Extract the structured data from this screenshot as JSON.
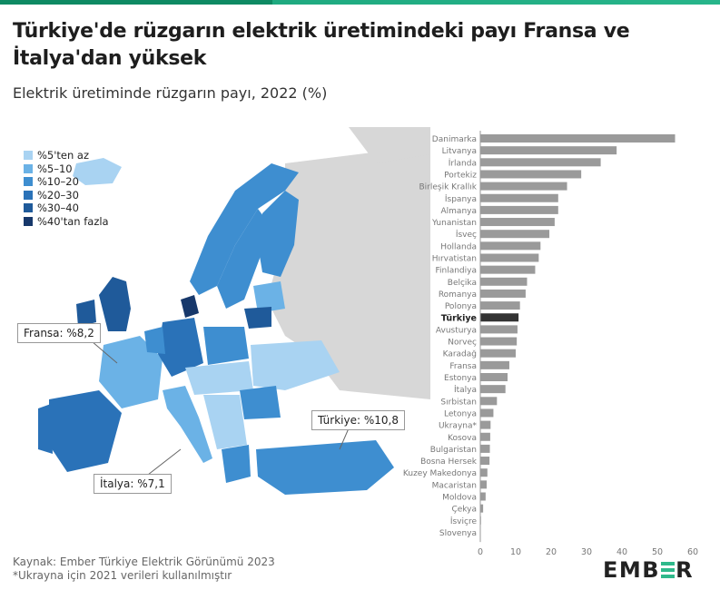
{
  "title": "Türkiye'de rüzgarın elektrik üretimindeki payı Fransa ve İtalya'dan yüksek",
  "subtitle": "Elektrik üretiminde rüzgarın payı, 2022 (%)",
  "source_line1": "Kaynak: Ember Türkiye Elektrik Görünümü 2023",
  "source_line2": "*Ukrayna için 2021 verileri kullanılmıştır",
  "logo_text": {
    "left": "EMB",
    "right": "R"
  },
  "colors": {
    "bar": "#9a9a9a",
    "highlight_bar": "#333333",
    "brand": "#2fb98b",
    "land": "#d7d7d7"
  },
  "legend": {
    "items": [
      {
        "label": "%5'ten az",
        "color": "#a9d3f2"
      },
      {
        "label": "%5–10",
        "color": "#6bb2e6"
      },
      {
        "label": "%10–20",
        "color": "#3e8ed0"
      },
      {
        "label": "%20–30",
        "color": "#2a72b8"
      },
      {
        "label": "%30–40",
        "color": "#1f5a9a"
      },
      {
        "label": "%40'tan fazla",
        "color": "#17386b"
      }
    ]
  },
  "callouts": {
    "france": "Fransa: %8,2",
    "turkey": "Türkiye: %10,8",
    "italy": "İtalya: %7,1"
  },
  "chart_data": {
    "type": "bar",
    "orientation": "horizontal",
    "categories": [
      "Danimarka",
      "Litvanya",
      "İrlanda",
      "Portekiz",
      "Birleşik Krallık",
      "İspanya",
      "Almanya",
      "Yunanistan",
      "İsveç",
      "Hollanda",
      "Hırvatistan",
      "Finlandiya",
      "Belçika",
      "Romanya",
      "Polonya",
      "Türkiye",
      "Avusturya",
      "Norveç",
      "Karadağ",
      "Fransa",
      "Estonya",
      "İtalya",
      "Sırbistan",
      "Letonya",
      "Ukrayna*",
      "Kosova",
      "Bulgaristan",
      "Bosna Hersek",
      "Kuzey Makedonya",
      "Macaristan",
      "Moldova",
      "Çekya",
      "İsviçre",
      "Slovenya"
    ],
    "values": [
      55,
      38.5,
      34,
      28.5,
      24.5,
      22,
      22,
      21,
      19.5,
      17,
      16.5,
      15.5,
      13.2,
      12.8,
      11.2,
      10.8,
      10.5,
      10.3,
      10,
      8.2,
      7.7,
      7.1,
      4.7,
      3.7,
      2.9,
      2.8,
      2.7,
      2.6,
      2.0,
      1.8,
      1.5,
      0.8,
      0.2,
      0.0
    ],
    "highlight": "Türkiye",
    "xlim": [
      0,
      60
    ],
    "xticks": [
      0,
      10,
      20,
      30,
      40,
      50,
      60
    ],
    "xlabel": "",
    "ylabel": "",
    "grid": false
  }
}
